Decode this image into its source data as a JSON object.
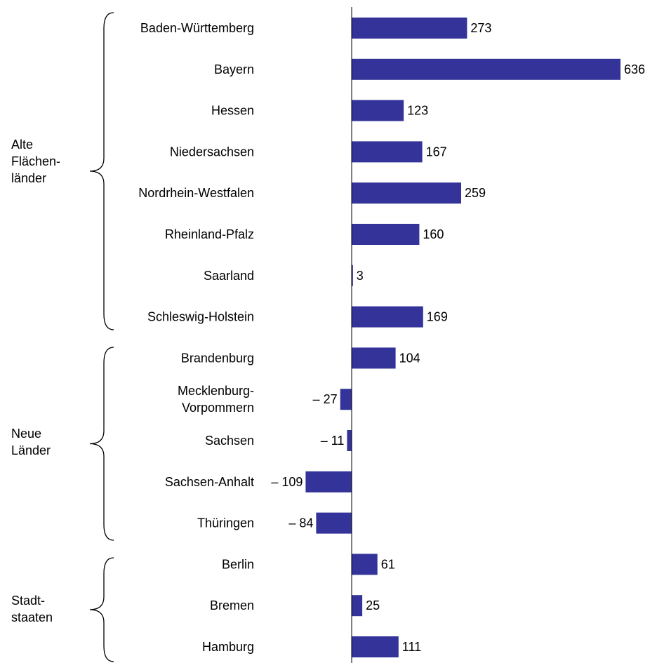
{
  "colors": {
    "bar": "#333399",
    "axis": "#000000",
    "text": "#000000"
  },
  "groups": [
    {
      "label_lines": [
        "Alte",
        "Flächen-",
        "länder"
      ]
    },
    {
      "label_lines": [
        "Neue",
        "Länder"
      ]
    },
    {
      "label_lines": [
        "Stadt-",
        "staaten"
      ]
    }
  ],
  "chart_data": {
    "type": "bar",
    "orientation": "horizontal",
    "title": "",
    "xlabel": "",
    "ylabel": "",
    "grid": false,
    "legend": "none",
    "xlim": [
      -130,
      650
    ],
    "categories": [
      "Baden-Württemberg",
      "Bayern",
      "Hessen",
      "Niedersachsen",
      "Nordrhein-Westfalen",
      "Rheinland-Pfalz",
      "Saarland",
      "Schleswig-Holstein",
      "Brandenburg",
      "Mecklenburg-Vorpommern",
      "Sachsen",
      "Sachsen-Anhalt",
      "Thüringen",
      "Berlin",
      "Bremen",
      "Hamburg"
    ],
    "category_label_lines": [
      [
        "Baden-Württemberg"
      ],
      [
        "Bayern"
      ],
      [
        "Hessen"
      ],
      [
        "Niedersachsen"
      ],
      [
        "Nordrhein-Westfalen"
      ],
      [
        "Rheinland-Pfalz"
      ],
      [
        "Saarland"
      ],
      [
        "Schleswig-Holstein"
      ],
      [
        "Brandenburg"
      ],
      [
        "Mecklenburg-",
        "Vorpommern"
      ],
      [
        "Sachsen"
      ],
      [
        "Sachsen-Anhalt"
      ],
      [
        "Thüringen"
      ],
      [
        "Berlin"
      ],
      [
        "Bremen"
      ],
      [
        "Hamburg"
      ]
    ],
    "category_group": [
      0,
      0,
      0,
      0,
      0,
      0,
      0,
      0,
      1,
      1,
      1,
      1,
      1,
      2,
      2,
      2
    ],
    "values": [
      273,
      636,
      123,
      167,
      259,
      160,
      3,
      169,
      104,
      -27,
      -11,
      -109,
      -84,
      61,
      25,
      111
    ],
    "value_labels": [
      "273",
      "636",
      "123",
      "167",
      "259",
      "160",
      "3",
      "169",
      "104",
      "– 27",
      "– 11",
      "– 109",
      "– 84",
      "61",
      "25",
      "111"
    ]
  }
}
